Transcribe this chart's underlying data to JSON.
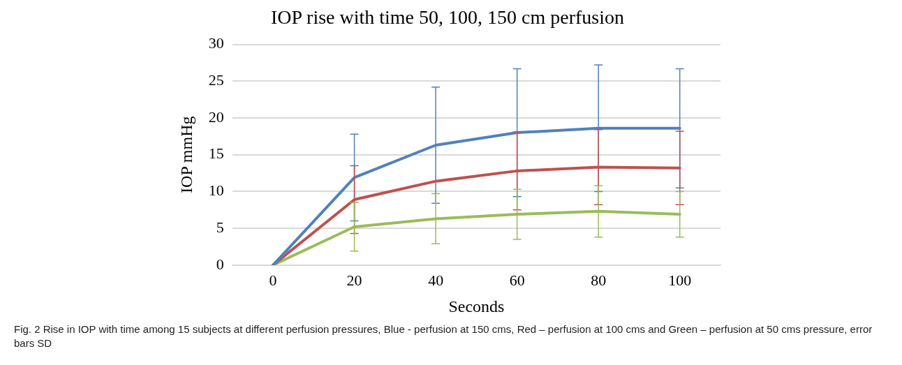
{
  "chart_data": {
    "type": "line",
    "title": "IOP rise with time 50, 100, 150 cm perfusion",
    "xlabel": "Seconds",
    "ylabel": "IOP mmHg",
    "categories": [
      "0",
      "20",
      "40",
      "60",
      "80",
      "100"
    ],
    "series": [
      {
        "color": "#4f81bd",
        "values": [
          0,
          11.9,
          16.3,
          18.0,
          18.6,
          18.6
        ],
        "errors": [
          null,
          5.9,
          7.9,
          8.7,
          8.6,
          8.1
        ]
      },
      {
        "color": "#c0504d",
        "values": [
          0,
          8.9,
          11.4,
          12.8,
          13.3,
          13.2
        ],
        "errors": [
          null,
          4.6,
          null,
          5.3,
          5.1,
          5.0
        ]
      },
      {
        "color": "#9bbb59",
        "values": [
          0,
          5.2,
          6.3,
          6.9,
          7.3,
          6.9
        ],
        "errors": [
          null,
          3.3,
          3.4,
          3.4,
          3.5,
          3.1
        ]
      }
    ],
    "ylim": [
      0,
      30
    ],
    "yticks": [
      0,
      5,
      10,
      15,
      20,
      25,
      30
    ],
    "grid": "y",
    "legend": false,
    "marker": "none",
    "line_style": "solid",
    "annotations": [
      "Fig. 2 Rise in IOP with time among 15 subjects at different perfusion pressures, Blue - perfusion at 150 cms, Red – perfusion at 100 cms and Green – perfusion at 50 cms pressure, error bars SD"
    ]
  }
}
